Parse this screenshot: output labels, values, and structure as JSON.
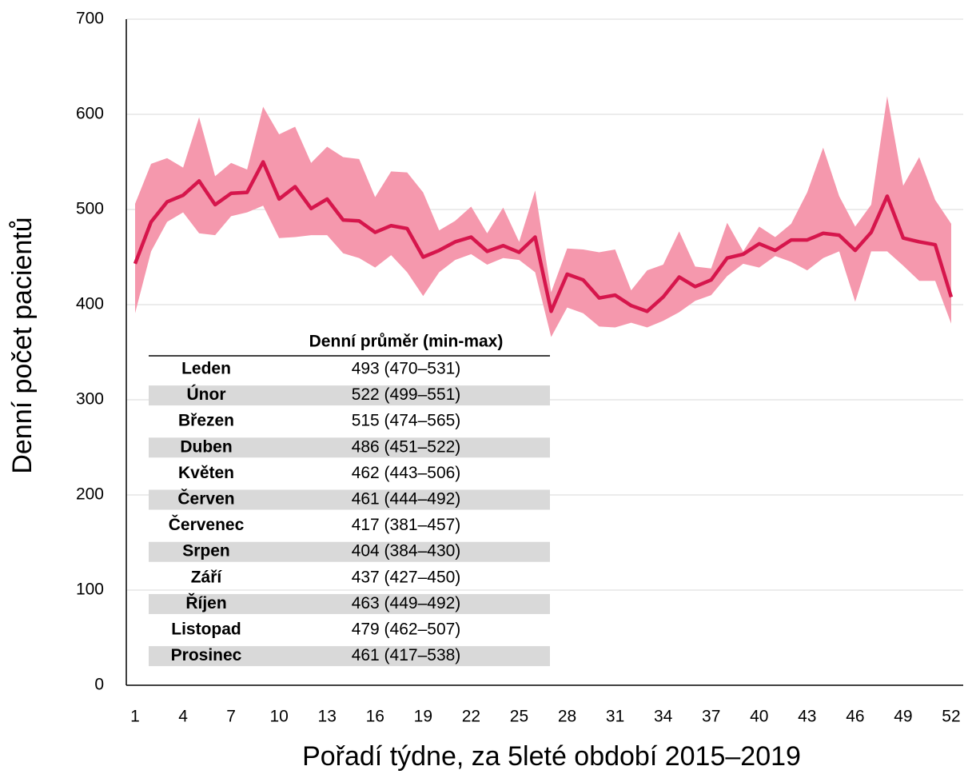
{
  "chart_data": {
    "type": "line",
    "x_label": "Pořadí týdne, za 5leté období 2015–2019",
    "y_label": "Denní počet pacientů",
    "x": [
      1,
      2,
      3,
      4,
      5,
      6,
      7,
      8,
      9,
      10,
      11,
      12,
      13,
      14,
      15,
      16,
      17,
      18,
      19,
      20,
      21,
      22,
      23,
      24,
      25,
      26,
      27,
      28,
      29,
      30,
      31,
      32,
      33,
      34,
      35,
      36,
      37,
      38,
      39,
      40,
      41,
      42,
      43,
      44,
      45,
      46,
      47,
      48,
      49,
      50,
      51,
      52
    ],
    "values": [
      443,
      487,
      508,
      515,
      530,
      505,
      517,
      518,
      550,
      511,
      524,
      501,
      511,
      489,
      488,
      476,
      483,
      480,
      450,
      457,
      466,
      471,
      456,
      462,
      455,
      471,
      393,
      432,
      426,
      407,
      410,
      399,
      393,
      408,
      429,
      419,
      426,
      449,
      453,
      464,
      457,
      468,
      468,
      475,
      473,
      457,
      476,
      514,
      470,
      466,
      463,
      408
    ],
    "upper": [
      506,
      548,
      554,
      544,
      597,
      535,
      549,
      542,
      608,
      579,
      587,
      549,
      566,
      555,
      553,
      513,
      540,
      539,
      518,
      478,
      488,
      503,
      475,
      502,
      466,
      520,
      413,
      459,
      458,
      455,
      458,
      415,
      436,
      442,
      477,
      440,
      438,
      486,
      456,
      482,
      471,
      485,
      518,
      565,
      514,
      482,
      505,
      619,
      525,
      555,
      510,
      485
    ],
    "lower": [
      391,
      456,
      487,
      497,
      475,
      473,
      493,
      497,
      504,
      470,
      471,
      473,
      473,
      454,
      449,
      439,
      452,
      434,
      409,
      434,
      447,
      453,
      442,
      449,
      447,
      434,
      366,
      397,
      391,
      377,
      376,
      381,
      376,
      383,
      392,
      404,
      410,
      430,
      443,
      439,
      451,
      445,
      436,
      449,
      456,
      403,
      456,
      456,
      441,
      425,
      425,
      380
    ],
    "color": "#d6164c",
    "band_color": "#f598ad",
    "xlim": [
      0.45,
      52.75
    ],
    "xticks": [
      1,
      4,
      7,
      10,
      13,
      16,
      19,
      22,
      25,
      28,
      31,
      34,
      37,
      40,
      43,
      46,
      49,
      52
    ],
    "ylim": [
      0,
      700
    ],
    "yticks": [
      0,
      100,
      200,
      300,
      400,
      500,
      600,
      700
    ],
    "grid": true
  },
  "table": {
    "header": "Denní průměr (min-max)",
    "rows": [
      [
        "Leden",
        "493 (470–531)"
      ],
      [
        "Únor",
        "522 (499–551)"
      ],
      [
        "Březen",
        "515 (474–565)"
      ],
      [
        "Duben",
        "486 (451–522)"
      ],
      [
        "Květen",
        "462 (443–506)"
      ],
      [
        "Červen",
        "461 (444–492)"
      ],
      [
        "Červenec",
        "417 (381–457)"
      ],
      [
        "Srpen",
        "404 (384–430)"
      ],
      [
        "Září",
        "437 (427–450)"
      ],
      [
        "Říjen",
        "463 (449–492)"
      ],
      [
        "Listopad",
        "479 (462–507)"
      ],
      [
        "Prosinec",
        "461 (417–538)"
      ]
    ]
  }
}
